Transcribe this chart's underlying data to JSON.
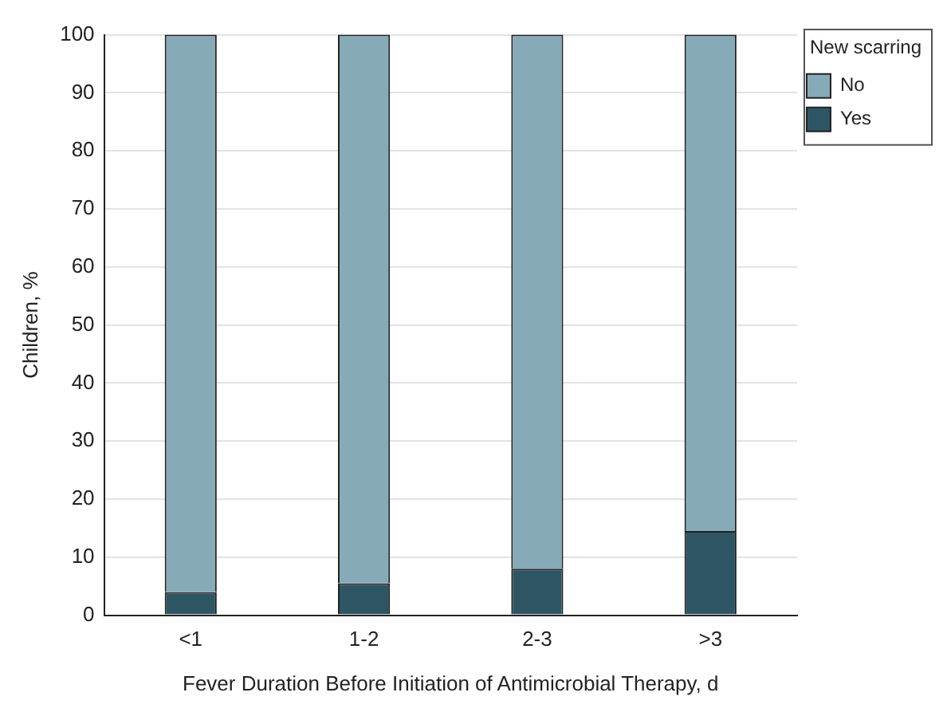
{
  "chart_data": {
    "type": "bar",
    "stacked": true,
    "xlabel": "Fever Duration Before Initiation of Antimicrobial Therapy, d",
    "ylabel": "Children, %",
    "legend_title": "New scarring",
    "legend": "top right",
    "grid": "y",
    "categories": [
      "<1",
      "1-2",
      "2-3",
      ">3"
    ],
    "series": [
      {
        "name": "Yes",
        "color": "#2e5564",
        "values": [
          4,
          5.5,
          8,
          14.5
        ]
      },
      {
        "name": "No",
        "color": "#87aab9",
        "values": [
          96,
          94.5,
          92,
          85.5
        ]
      }
    ],
    "ylim": [
      0,
      100
    ],
    "yticks": [
      0,
      10,
      20,
      30,
      40,
      50,
      60,
      70,
      80,
      90,
      100
    ]
  }
}
